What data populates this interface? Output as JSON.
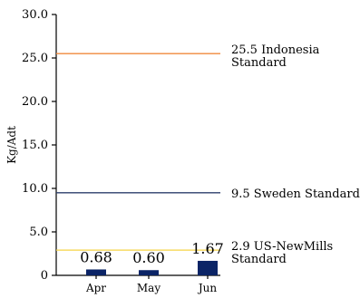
{
  "chart_data": {
    "type": "bar",
    "ylabel": "Kg/Adt",
    "xlabel": "",
    "ylim": [
      0,
      30
    ],
    "y_ticks": [
      "0",
      "5.0",
      "10.0",
      "15.0",
      "20.0",
      "25.0",
      "30.0"
    ],
    "y_tick_values": [
      0,
      5,
      10,
      15,
      20,
      25,
      30
    ],
    "categories": [
      "Apr",
      "May",
      "Jun"
    ],
    "values": [
      0.68,
      0.6,
      1.67
    ],
    "value_labels": [
      "0.68",
      "0.60",
      "1.67"
    ],
    "bar_color": "#0b2466",
    "grid": false,
    "reference_lines": [
      {
        "value": 25.5,
        "label_lines": [
          "25.5 Indonesia",
          "Standard"
        ],
        "color": "#f08a3c"
      },
      {
        "value": 9.5,
        "label_lines": [
          "9.5 Sweden Standard"
        ],
        "color": "#2c3e6b"
      },
      {
        "value": 2.9,
        "label_lines": [
          "2.9 US-NewMills",
          "Standard"
        ],
        "color": "#f5d343"
      }
    ]
  }
}
